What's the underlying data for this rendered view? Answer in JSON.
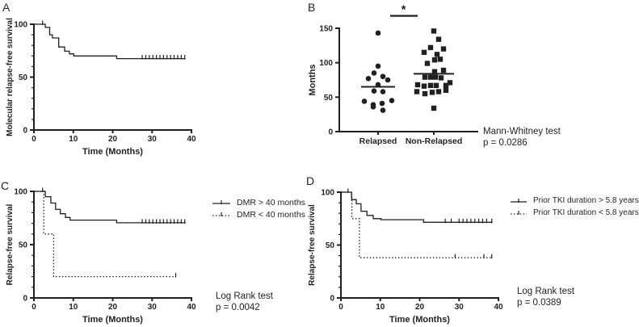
{
  "colors": {
    "ink": "#231f20",
    "bg": "#ffffff"
  },
  "panel_letters": {
    "a": "A",
    "b": "B",
    "c": "C",
    "d": "D"
  },
  "stats": {
    "b_test": "Mann-Whitney test",
    "b_p": "p = 0.0286",
    "c_test": "Log Rank test",
    "c_p": "p = 0.0042",
    "d_test": "Log Rank test",
    "d_p": "p = 0.0389"
  },
  "chart_data": [
    {
      "id": "A",
      "panel_label": "A",
      "type": "line",
      "subtype": "kaplan-meier",
      "xlabel": "Time (Months)",
      "ylabel": "Molecular relapse-free survival",
      "xlim": [
        0,
        40
      ],
      "ylim": [
        0,
        100
      ],
      "xticks": [
        0,
        10,
        20,
        30,
        40
      ],
      "yticks": [
        0,
        50,
        100
      ],
      "y_minor_step": 10,
      "grid": false,
      "annotation": "",
      "series": [
        {
          "name": "Molecular relapse-free survival",
          "style": "solid",
          "steps": [
            [
              0,
              100
            ],
            [
              2.9,
              100
            ],
            [
              2.9,
              97
            ],
            [
              4,
              97
            ],
            [
              4,
              90
            ],
            [
              4.7,
              90
            ],
            [
              4.7,
              87
            ],
            [
              6.3,
              87
            ],
            [
              6.3,
              78.5
            ],
            [
              7.8,
              78.5
            ],
            [
              7.8,
              74.5
            ],
            [
              9,
              74.5
            ],
            [
              9,
              72
            ],
            [
              10.1,
              72
            ],
            [
              10.1,
              70
            ],
            [
              21,
              70
            ],
            [
              21,
              67.5
            ],
            [
              38.5,
              67.5
            ]
          ],
          "censor_marks": [
            [
              2.2,
              100
            ],
            [
              27.5,
              67.5
            ],
            [
              28.4,
              67.5
            ],
            [
              29.3,
              67.5
            ],
            [
              30.2,
              67.5
            ],
            [
              31.1,
              67.5
            ],
            [
              32,
              67.5
            ],
            [
              32.9,
              67.5
            ],
            [
              33.8,
              67.5
            ],
            [
              34.7,
              67.5
            ],
            [
              35.6,
              67.5
            ],
            [
              36.5,
              67.5
            ],
            [
              37.4,
              67.5
            ],
            [
              38.3,
              67.5
            ]
          ]
        }
      ]
    },
    {
      "id": "B",
      "panel_label": "B",
      "type": "scatter",
      "subtype": "column-scatter",
      "xlabel": "",
      "ylabel": "Months",
      "ylim": [
        0,
        150
      ],
      "yticks": [
        0,
        50,
        100,
        150
      ],
      "grid": false,
      "categories": [
        "Relapsed",
        "Non-Relapsed"
      ],
      "significance": {
        "label": "*",
        "bar_months": 168
      },
      "annotation": "Mann-Whitney test p = 0.0286",
      "groups": [
        {
          "name": "Relapsed",
          "marker": "circle",
          "median": 65,
          "points": [
            [
              0,
              143
            ],
            [
              0,
              95
            ],
            [
              -5,
              85
            ],
            [
              6,
              80
            ],
            [
              -12,
              77
            ],
            [
              12,
              75
            ],
            [
              0,
              68
            ],
            [
              -5,
              59
            ],
            [
              6,
              58
            ],
            [
              17,
              45
            ],
            [
              -17,
              44
            ],
            [
              5,
              41
            ],
            [
              -6,
              39
            ],
            [
              -6,
              36
            ],
            [
              6,
              31
            ]
          ]
        },
        {
          "name": "Non-Relapsed",
          "marker": "square",
          "median": 84,
          "points": [
            [
              0,
              146
            ],
            [
              6,
              134
            ],
            [
              -4,
              122
            ],
            [
              12,
              120
            ],
            [
              -12,
              115
            ],
            [
              4,
              112
            ],
            [
              8,
              105
            ],
            [
              1,
              104
            ],
            [
              -8,
              99
            ],
            [
              12,
              89
            ],
            [
              1,
              87
            ],
            [
              -11,
              79
            ],
            [
              -4,
              79
            ],
            [
              2,
              79
            ],
            [
              9,
              78
            ],
            [
              20,
              71
            ],
            [
              -20,
              68
            ],
            [
              -12,
              66
            ],
            [
              -4,
              67
            ],
            [
              3,
              67
            ],
            [
              15,
              67
            ],
            [
              15,
              60
            ],
            [
              -21,
              58
            ],
            [
              6,
              58
            ],
            [
              -2,
              57
            ],
            [
              -11,
              55
            ],
            [
              0,
              34
            ]
          ]
        }
      ]
    },
    {
      "id": "C",
      "panel_label": "C",
      "type": "line",
      "subtype": "kaplan-meier",
      "xlabel": "Time (Months)",
      "ylabel": "Relapse-free survival",
      "xlim": [
        0,
        40
      ],
      "ylim": [
        0,
        100
      ],
      "xticks": [
        0,
        10,
        20,
        30,
        40
      ],
      "yticks": [
        0,
        50,
        100
      ],
      "y_minor_step": 10,
      "grid": false,
      "annotation": "Log Rank test p = 0.0042",
      "series": [
        {
          "name": "DMR > 40 months",
          "style": "solid",
          "steps": [
            [
              0,
              100
            ],
            [
              2.9,
              100
            ],
            [
              2.9,
              95
            ],
            [
              4.3,
              95
            ],
            [
              4.3,
              89
            ],
            [
              5.5,
              89
            ],
            [
              5.5,
              83
            ],
            [
              6.7,
              83
            ],
            [
              6.7,
              79
            ],
            [
              8,
              79
            ],
            [
              8,
              75.5
            ],
            [
              9.2,
              75.5
            ],
            [
              9.2,
              73
            ],
            [
              21,
              73
            ],
            [
              21,
              70.5
            ],
            [
              38.5,
              70.5
            ]
          ],
          "censor_marks": [
            [
              2.2,
              100
            ],
            [
              27.5,
              70.5
            ],
            [
              28.4,
              70.5
            ],
            [
              29.3,
              70.5
            ],
            [
              30.2,
              70.5
            ],
            [
              31.1,
              70.5
            ],
            [
              32,
              70.5
            ],
            [
              32.9,
              70.5
            ],
            [
              33.8,
              70.5
            ],
            [
              34.7,
              70.5
            ],
            [
              35.6,
              70.5
            ],
            [
              36.5,
              70.5
            ],
            [
              37.4,
              70.5
            ],
            [
              38.3,
              70.5
            ]
          ]
        },
        {
          "name": "DMR < 40 months",
          "style": "dotted",
          "steps": [
            [
              0,
              100
            ],
            [
              2.5,
              100
            ],
            [
              2.5,
              60
            ],
            [
              5,
              60
            ],
            [
              5,
              20
            ],
            [
              36,
              20
            ]
          ],
          "censor_marks": [
            [
              36,
              20
            ]
          ]
        }
      ]
    },
    {
      "id": "D",
      "panel_label": "D",
      "type": "line",
      "subtype": "kaplan-meier",
      "xlabel": "Time (Months)",
      "ylabel": "Relapse-free survival",
      "xlim": [
        0,
        40
      ],
      "ylim": [
        0,
        100
      ],
      "xticks": [
        0,
        10,
        20,
        30,
        40
      ],
      "yticks": [
        0,
        50,
        100
      ],
      "y_minor_step": 10,
      "grid": false,
      "annotation": "Log Rank test p = 0.0389",
      "series": [
        {
          "name": "Prior TKI duration > 5.8 years",
          "style": "solid",
          "steps": [
            [
              0,
              100
            ],
            [
              2.7,
              100
            ],
            [
              2.7,
              93
            ],
            [
              3.9,
              93
            ],
            [
              3.9,
              89
            ],
            [
              5.1,
              89
            ],
            [
              5.1,
              82
            ],
            [
              6.6,
              82
            ],
            [
              6.6,
              78
            ],
            [
              8.2,
              78
            ],
            [
              8.2,
              75
            ],
            [
              10.2,
              75
            ],
            [
              10.2,
              74
            ],
            [
              21,
              74
            ],
            [
              21,
              71.5
            ],
            [
              38.5,
              71.5
            ]
          ],
          "censor_marks": [
            [
              1.8,
              100
            ],
            [
              26.5,
              71.5
            ],
            [
              28,
              71.5
            ],
            [
              30,
              71.5
            ],
            [
              31,
              71.5
            ],
            [
              32,
              71.5
            ],
            [
              33,
              71.5
            ],
            [
              34,
              71.5
            ],
            [
              35,
              71.5
            ],
            [
              36,
              71.5
            ],
            [
              37,
              71.5
            ],
            [
              38.3,
              71.5
            ]
          ]
        },
        {
          "name": "Prior TKI duration < 5.8 years",
          "style": "dotted",
          "steps": [
            [
              0,
              100
            ],
            [
              2.8,
              100
            ],
            [
              2.8,
              75
            ],
            [
              4.7,
              75
            ],
            [
              4.7,
              38
            ],
            [
              38.3,
              38
            ]
          ],
          "censor_marks": [
            [
              29,
              38
            ],
            [
              36.3,
              38
            ],
            [
              38.3,
              38
            ]
          ]
        }
      ]
    }
  ]
}
